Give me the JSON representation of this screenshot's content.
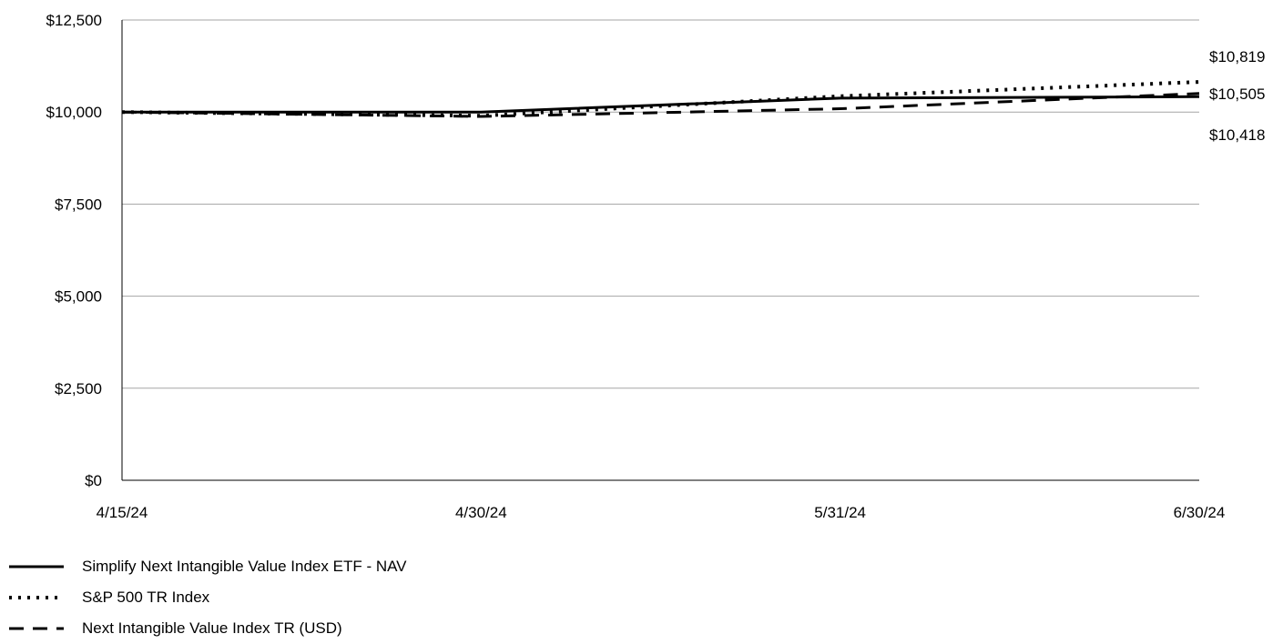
{
  "chart_data": {
    "type": "line",
    "x": [
      "4/15/24",
      "4/30/24",
      "5/31/24",
      "6/30/24"
    ],
    "ylim": [
      0,
      12500
    ],
    "yticks": [
      0,
      2500,
      5000,
      7500,
      10000,
      12500
    ],
    "ytick_labels": [
      "$0",
      "$2,500",
      "$5,000",
      "$7,500",
      "$10,000",
      "$12,500"
    ],
    "grid": true,
    "legend_position": "bottom-left",
    "series": [
      {
        "name": "Simplify Next Intangible Value Index ETF - NAV",
        "style": "solid",
        "values": [
          10000,
          10000,
          10380,
          10418
        ],
        "end_label": "$10,418"
      },
      {
        "name": "S&P 500 TR Index",
        "style": "dotted",
        "values": [
          10000,
          9900,
          10430,
          10819
        ],
        "end_label": "$10,819"
      },
      {
        "name": "Next Intangible Value Index TR (USD)",
        "style": "dashed",
        "values": [
          10000,
          9880,
          10090,
          10505
        ],
        "end_label": "$10,505"
      }
    ]
  },
  "colors": {
    "line": "#000000",
    "grid": "#a6a6a6",
    "background": "#ffffff"
  }
}
